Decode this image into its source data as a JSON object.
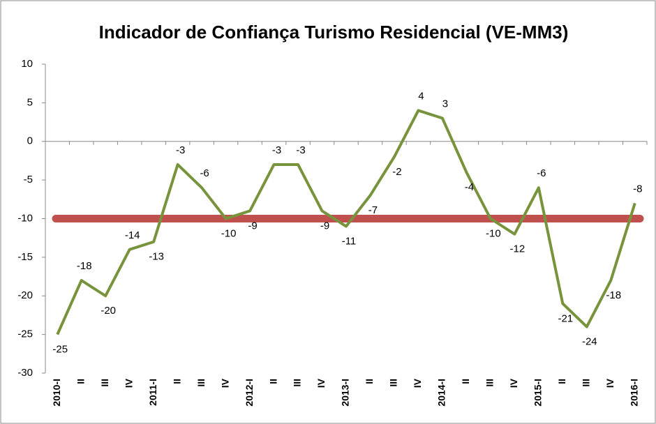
{
  "chart_data": {
    "type": "line",
    "title": "Indicador de Confiança Turismo Residencial (VE-MM3)",
    "categories": [
      "2010-I",
      "II",
      "III",
      "IV",
      "2011-I",
      "II",
      "III",
      "IV",
      "2012-I",
      "II",
      "III",
      "IV",
      "2013-I",
      "II",
      "III",
      "IV",
      "2014-I",
      "II",
      "III",
      "IV",
      "2015-I",
      "II",
      "III",
      "IV",
      "2016-I"
    ],
    "series": [
      {
        "color": "#77933c",
        "values": [
          -25,
          -18,
          -20,
          -14,
          -13,
          -3,
          -6,
          -10,
          -9,
          -3,
          -3,
          -9,
          -11,
          -7,
          -2,
          4,
          3,
          -4,
          -10,
          -12,
          -6,
          -21,
          -24,
          -18,
          -8
        ]
      }
    ],
    "reference_line": {
      "value": -10,
      "color": "#c0504d"
    },
    "ylim": [
      -30,
      10
    ],
    "yticks": [
      10,
      5,
      0,
      -5,
      -10,
      -15,
      -20,
      -25,
      -30
    ],
    "grid": false
  }
}
